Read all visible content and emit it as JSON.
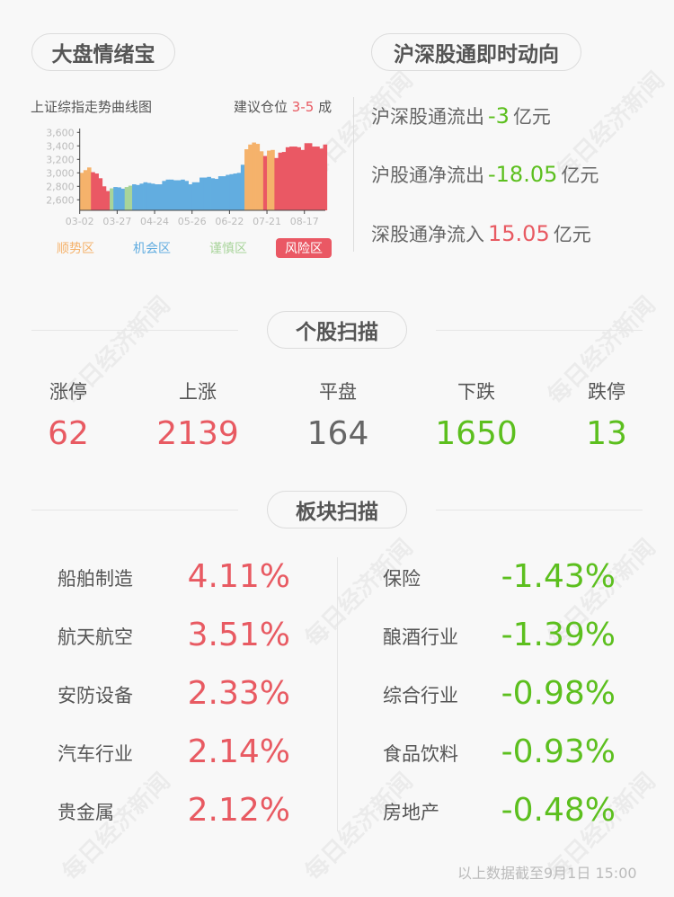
{
  "watermark": "每日经济新闻",
  "sentiment": {
    "title": "大盘情绪宝",
    "chart_title": "上证综指走势曲线图",
    "position_label": "建议仓位",
    "position_value": "3-5",
    "position_unit": "成",
    "legend": [
      {
        "label": "顺势区",
        "color": "#f5b26b",
        "active": false
      },
      {
        "label": "机会区",
        "color": "#62ade0",
        "active": false
      },
      {
        "label": "谨慎区",
        "color": "#a8d49a",
        "active": false
      },
      {
        "label": "风险区",
        "color": "#ea5864",
        "active": true
      }
    ]
  },
  "chart_data": {
    "type": "area",
    "title": "上证综指走势曲线图",
    "ylim": [
      2444,
      3650
    ],
    "yticks": [
      "2,600",
      "2,800",
      "3,000",
      "3,200",
      "3,400",
      "3,600"
    ],
    "ytick_values": [
      2600,
      2800,
      3000,
      3200,
      3400,
      3600
    ],
    "xticks": [
      "03-02",
      "03-27",
      "04-24",
      "05-26",
      "06-22",
      "07-21",
      "08-17"
    ],
    "xtick_index": [
      0,
      10,
      20,
      30,
      40,
      50,
      60
    ],
    "zone_colors": {
      "顺势区": "#f5b26b",
      "机会区": "#62ade0",
      "谨慎区": "#a8d49a",
      "风险区": "#ea5864"
    },
    "values": [
      3000,
      3040,
      3080,
      3010,
      2990,
      2920,
      2800,
      2730,
      2770,
      2790,
      2785,
      2765,
      2790,
      2810,
      2830,
      2820,
      2840,
      2860,
      2850,
      2840,
      2830,
      2830,
      2880,
      2900,
      2900,
      2890,
      2890,
      2900,
      2880,
      2830,
      2860,
      2860,
      2930,
      2930,
      2940,
      2920,
      2910,
      2950,
      2950,
      2970,
      2980,
      2990,
      3000,
      3120,
      3350,
      3420,
      3450,
      3430,
      3320,
      3250,
      3330,
      3340,
      3220,
      3300,
      3310,
      3380,
      3390,
      3390,
      3380,
      3340,
      3440,
      3440,
      3390,
      3390,
      3360,
      3420
    ],
    "zones": [
      "顺势区",
      "顺势区",
      "顺势区",
      "风险区",
      "风险区",
      "风险区",
      "风险区",
      "风险区",
      "谨慎区",
      "机会区",
      "机会区",
      "机会区",
      "谨慎区",
      "谨慎区",
      "机会区",
      "机会区",
      "机会区",
      "机会区",
      "机会区",
      "机会区",
      "机会区",
      "机会区",
      "机会区",
      "机会区",
      "机会区",
      "机会区",
      "机会区",
      "机会区",
      "机会区",
      "机会区",
      "机会区",
      "机会区",
      "机会区",
      "机会区",
      "机会区",
      "机会区",
      "机会区",
      "机会区",
      "机会区",
      "机会区",
      "机会区",
      "机会区",
      "机会区",
      "机会区",
      "顺势区",
      "顺势区",
      "顺势区",
      "顺势区",
      "顺势区",
      "风险区",
      "顺势区",
      "顺势区",
      "风险区",
      "风险区",
      "风险区",
      "风险区",
      "风险区",
      "风险区",
      "风险区",
      "风险区",
      "风险区",
      "风险区",
      "风险区",
      "风险区",
      "风险区",
      "风险区"
    ]
  },
  "connect": {
    "title": "沪深股通即时动向",
    "rows": [
      {
        "label": "沪深股通流出",
        "value": "-3",
        "unit": "亿元",
        "tone": "green"
      },
      {
        "label": "沪股通净流出",
        "value": "-18.05",
        "unit": "亿元",
        "tone": "green"
      },
      {
        "label": "深股通净流入",
        "value": "15.05",
        "unit": "亿元",
        "tone": "red"
      }
    ]
  },
  "stocks": {
    "title": "个股扫描",
    "items": [
      {
        "label": "涨停",
        "value": "62",
        "tone": "red"
      },
      {
        "label": "上涨",
        "value": "2139",
        "tone": "red"
      },
      {
        "label": "平盘",
        "value": "164",
        "tone": "dark"
      },
      {
        "label": "下跌",
        "value": "1650",
        "tone": "green"
      },
      {
        "label": "跌停",
        "value": "13",
        "tone": "green"
      }
    ]
  },
  "sectors": {
    "title": "板块扫描",
    "gainers": [
      {
        "name": "船舶制造",
        "pct": "4.11%"
      },
      {
        "name": "航天航空",
        "pct": "3.51%"
      },
      {
        "name": "安防设备",
        "pct": "2.33%"
      },
      {
        "name": "汽车行业",
        "pct": "2.14%"
      },
      {
        "name": "贵金属",
        "pct": "2.12%"
      }
    ],
    "losers": [
      {
        "name": "保险",
        "pct": "-1.43%"
      },
      {
        "name": "酿酒行业",
        "pct": "-1.39%"
      },
      {
        "name": "综合行业",
        "pct": "-0.98%"
      },
      {
        "name": "食品饮料",
        "pct": "-0.93%"
      },
      {
        "name": "房地产",
        "pct": "-0.48%"
      }
    ]
  },
  "footer": "以上数据截至9月1日 15:00"
}
